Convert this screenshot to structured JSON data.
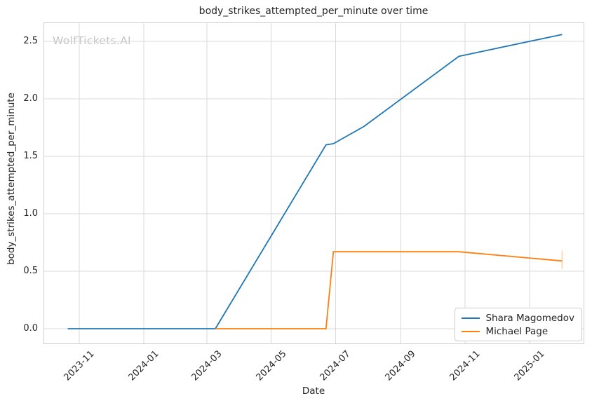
{
  "watermark": "WolfTickets.AI",
  "colors": {
    "series_blue": "#1f77b4",
    "series_orange": "#ff7f0e",
    "grid": "#d9d9d9",
    "spine": "#cfcfcf",
    "text": "#262626",
    "watermark": "#c6c6c6",
    "legend_border": "#cccccc",
    "error_bar": "#ffcfa6"
  },
  "chart_data": {
    "type": "line",
    "title": "body_strikes_attempted_per_minute over time",
    "xlabel": "Date",
    "ylabel": "body_strikes_attempted_per_minute",
    "grid": true,
    "legend_position": "lower right",
    "x_tick_labels": [
      "2023-11",
      "2024-01",
      "2024-03",
      "2024-05",
      "2024-07",
      "2024-09",
      "2024-11",
      "2025-01"
    ],
    "y_tick_values": [
      0.0,
      0.5,
      1.0,
      1.5,
      2.0,
      2.5
    ],
    "x_domain": [
      "2023-09-28",
      "2025-02-22"
    ],
    "ylim": [
      -0.134,
      2.665
    ],
    "series": [
      {
        "name": "Shara Magomedov",
        "color": "#1f77b4",
        "points": [
          [
            "2023-10-21",
            0.0
          ],
          [
            "2024-03-09",
            0.0
          ],
          [
            "2024-06-22",
            1.6
          ],
          [
            "2024-06-29",
            1.61
          ],
          [
            "2024-07-28",
            1.76
          ],
          [
            "2024-10-26",
            2.37
          ],
          [
            "2025-02-01",
            2.56
          ]
        ]
      },
      {
        "name": "Michael Page",
        "color": "#ff7f0e",
        "points": [
          [
            "2024-03-09",
            0.0
          ],
          [
            "2024-06-22",
            0.0
          ],
          [
            "2024-06-29",
            0.67
          ],
          [
            "2024-10-26",
            0.67
          ],
          [
            "2025-02-01",
            0.59
          ]
        ],
        "end_error_bar": {
          "low": 0.52,
          "high": 0.68,
          "color": "#ffcfa6"
        }
      }
    ]
  }
}
